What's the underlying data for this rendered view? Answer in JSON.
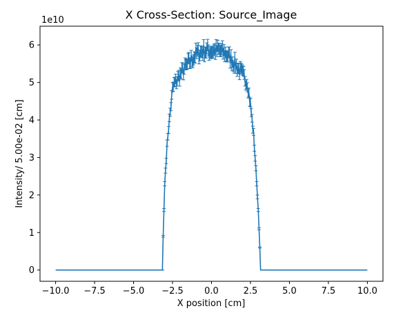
{
  "chart_data": {
    "type": "line",
    "title": "X Cross-Section: Source_Image",
    "xlabel": "X position [cm]",
    "ylabel": "Intensity/ 5.00e-02 [cm]",
    "y_offset_text": "1e10",
    "y_multiplier": 10000000000,
    "xlim": [
      -11.0,
      11.0
    ],
    "ylim": [
      -3000000000.0,
      65000000000.0
    ],
    "x_ticks": [
      -10,
      -7.5,
      -5,
      -2.5,
      0,
      2.5,
      5,
      7.5,
      10
    ],
    "x_tick_labels": [
      "−10.0",
      "−7.5",
      "−5.0",
      "−2.5",
      "0.0",
      "2.5",
      "5.0",
      "7.5",
      "10.0"
    ],
    "y_ticks": [
      0,
      10000000000.0,
      20000000000.0,
      30000000000.0,
      40000000000.0,
      50000000000.0,
      60000000000.0
    ],
    "y_tick_labels": [
      "0",
      "1",
      "2",
      "3",
      "4",
      "5",
      "6"
    ],
    "grid": false,
    "series_color": "#1f77b4",
    "profile_keypoints": {
      "x": [
        -10.0,
        -3.15,
        -3.1,
        -3.05,
        -3.0,
        -2.9,
        -2.8,
        -2.7,
        -2.6,
        -2.5,
        -2.4,
        -2.3,
        -2.0,
        -1.5,
        -1.0,
        -0.5,
        0.0,
        0.5,
        1.0,
        1.5,
        2.0,
        2.3,
        2.4,
        2.5,
        2.6,
        2.7,
        2.8,
        2.9,
        3.0,
        3.05,
        3.1,
        3.15,
        10.0
      ],
      "y": [
        0,
        0,
        9000000000.0,
        16000000000.0,
        23000000000.0,
        30000000000.0,
        36000000000.0,
        40000000000.0,
        44000000000.0,
        48000000000.0,
        49500000000.0,
        50000000000.0,
        52000000000.0,
        55000000000.0,
        57500000000.0,
        58500000000.0,
        58500000000.0,
        58500000000.0,
        57500000000.0,
        55000000000.0,
        52000000000.0,
        50000000000.0,
        47000000000.0,
        44000000000.0,
        40000000000.0,
        36000000000.0,
        30000000000.0,
        23000000000.0,
        16000000000.0,
        11000000000.0,
        6000000000.0,
        0,
        0
      ]
    },
    "sample_step": 0.05,
    "errorbar_relative": 0.025
  }
}
